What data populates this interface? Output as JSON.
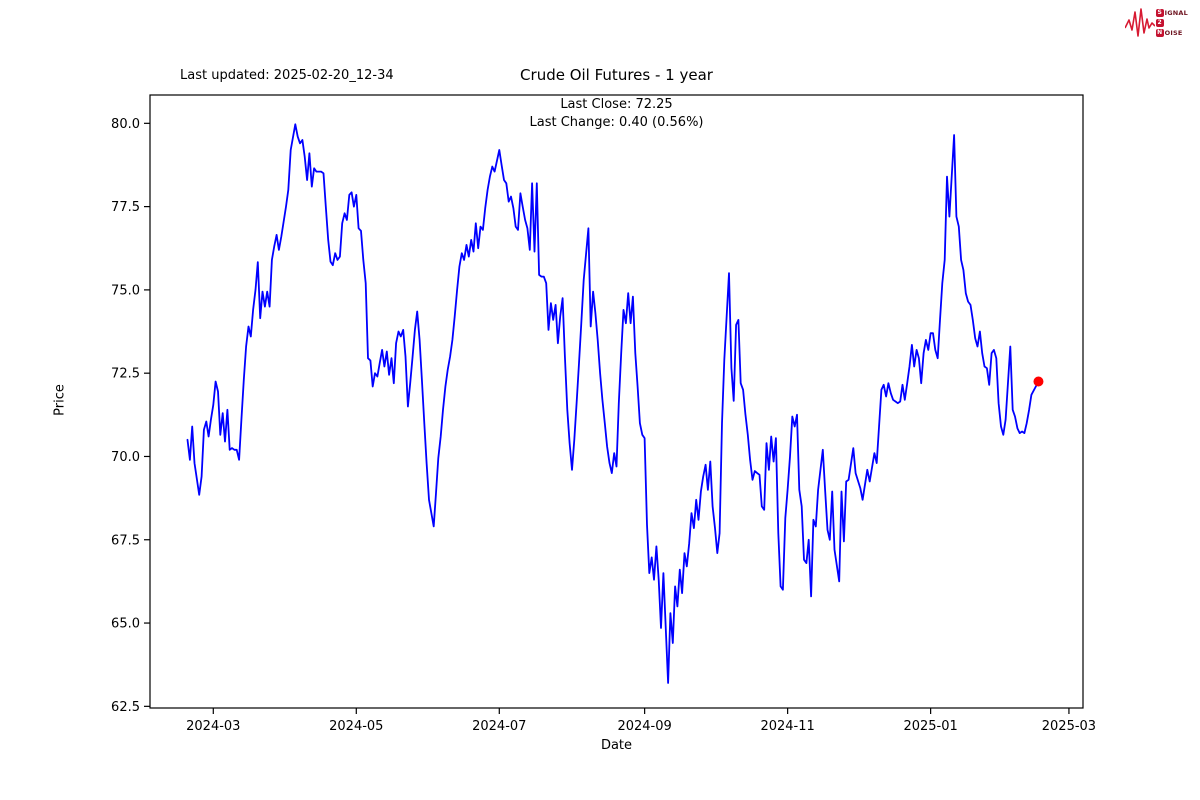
{
  "header": {
    "last_updated": "Last updated: 2025-02-20_12-34",
    "title": "Crude Oil Futures - 1 year",
    "last_close": "Last Close: 72.25",
    "last_change": "Last Change: 0.40 (0.56%)"
  },
  "logo": {
    "word1_initial": "S",
    "word1_rest": "IGNAL",
    "word2": "2",
    "word3_initial": "N",
    "word3_rest": "OISE",
    "accent_color": "#c41230"
  },
  "axes": {
    "xlabel": "Date",
    "ylabel": "Price"
  },
  "chart_data": {
    "type": "line",
    "title": "Crude Oil Futures - 1 year",
    "xlabel": "Date",
    "ylabel": "Price",
    "line_color": "#0000ff",
    "last_point_color": "#ff0000",
    "grid": false,
    "x_start_date": "2024-02-19",
    "x_end_date": "2025-02-19",
    "xlim_days": [
      -16,
      382
    ],
    "ylim": [
      62.45,
      80.85
    ],
    "x_ticks": [
      {
        "label": "2024-03",
        "day": 11
      },
      {
        "label": "2024-05",
        "day": 72
      },
      {
        "label": "2024-07",
        "day": 133
      },
      {
        "label": "2024-09",
        "day": 195
      },
      {
        "label": "2024-11",
        "day": 256
      },
      {
        "label": "2025-01",
        "day": 317
      },
      {
        "label": "2025-03",
        "day": 376
      }
    ],
    "y_ticks": [
      {
        "label": "80.0",
        "value": 80.0
      },
      {
        "label": "77.5",
        "value": 77.5
      },
      {
        "label": "75.0",
        "value": 75.0
      },
      {
        "label": "72.5",
        "value": 72.5
      },
      {
        "label": "70.0",
        "value": 70.0
      },
      {
        "label": "67.5",
        "value": 67.5
      },
      {
        "label": "65.0",
        "value": 65.0
      },
      {
        "label": "62.5",
        "value": 62.5
      }
    ],
    "last_close": 72.25,
    "last_change": 0.4,
    "last_change_pct": 0.56,
    "points_format": "[days_since_2024-02-19, price]",
    "points": [
      [
        0,
        70.5
      ],
      [
        1,
        69.9
      ],
      [
        2,
        70.9
      ],
      [
        3,
        69.8
      ],
      [
        5,
        68.85
      ],
      [
        6,
        69.4
      ],
      [
        7,
        70.8
      ],
      [
        8,
        71.05
      ],
      [
        9,
        70.6
      ],
      [
        10,
        71.1
      ],
      [
        11,
        71.55
      ],
      [
        12,
        72.25
      ],
      [
        13,
        71.95
      ],
      [
        14,
        70.65
      ],
      [
        15,
        71.3
      ],
      [
        16,
        70.45
      ],
      [
        17,
        71.4
      ],
      [
        18,
        70.2
      ],
      [
        19,
        70.25
      ],
      [
        20,
        70.2
      ],
      [
        21,
        70.2
      ],
      [
        22,
        69.9
      ],
      [
        23,
        71.1
      ],
      [
        24,
        72.3
      ],
      [
        25,
        73.3
      ],
      [
        26,
        73.9
      ],
      [
        27,
        73.6
      ],
      [
        28,
        74.4
      ],
      [
        29,
        75.0
      ],
      [
        30,
        75.83
      ],
      [
        31,
        74.15
      ],
      [
        32,
        74.95
      ],
      [
        33,
        74.5
      ],
      [
        34,
        74.95
      ],
      [
        35,
        74.5
      ],
      [
        36,
        75.9
      ],
      [
        37,
        76.3
      ],
      [
        38,
        76.65
      ],
      [
        39,
        76.2
      ],
      [
        40,
        76.6
      ],
      [
        42,
        77.5
      ],
      [
        43,
        78.0
      ],
      [
        44,
        79.2
      ],
      [
        46,
        79.97
      ],
      [
        47,
        79.6
      ],
      [
        48,
        79.4
      ],
      [
        49,
        79.5
      ],
      [
        50,
        79.0
      ],
      [
        51,
        78.3
      ],
      [
        52,
        79.1
      ],
      [
        53,
        78.1
      ],
      [
        54,
        78.65
      ],
      [
        55,
        78.55
      ],
      [
        57,
        78.55
      ],
      [
        58,
        78.5
      ],
      [
        59,
        77.5
      ],
      [
        60,
        76.5
      ],
      [
        61,
        75.85
      ],
      [
        62,
        75.74
      ],
      [
        63,
        76.1
      ],
      [
        64,
        75.9
      ],
      [
        65,
        76.0
      ],
      [
        66,
        77.0
      ],
      [
        67,
        77.3
      ],
      [
        68,
        77.1
      ],
      [
        69,
        77.85
      ],
      [
        70,
        77.93
      ],
      [
        71,
        77.5
      ],
      [
        72,
        77.85
      ],
      [
        73,
        76.85
      ],
      [
        74,
        76.77
      ],
      [
        75,
        75.9
      ],
      [
        76,
        75.2
      ],
      [
        77,
        72.95
      ],
      [
        78,
        72.88
      ],
      [
        79,
        72.1
      ],
      [
        80,
        72.5
      ],
      [
        81,
        72.4
      ],
      [
        82,
        72.8
      ],
      [
        83,
        73.2
      ],
      [
        84,
        72.7
      ],
      [
        85,
        73.15
      ],
      [
        86,
        72.45
      ],
      [
        87,
        72.95
      ],
      [
        88,
        72.2
      ],
      [
        89,
        73.4
      ],
      [
        90,
        73.75
      ],
      [
        91,
        73.6
      ],
      [
        92,
        73.8
      ],
      [
        93,
        73.0
      ],
      [
        94,
        71.5
      ],
      [
        95,
        72.2
      ],
      [
        96,
        73.0
      ],
      [
        97,
        73.8
      ],
      [
        98,
        74.35
      ],
      [
        99,
        73.5
      ],
      [
        100,
        72.3
      ],
      [
        101,
        71.0
      ],
      [
        102,
        69.8
      ],
      [
        103,
        68.7
      ],
      [
        105,
        67.9
      ],
      [
        106,
        68.9
      ],
      [
        107,
        69.95
      ],
      [
        108,
        70.6
      ],
      [
        109,
        71.4
      ],
      [
        110,
        72.1
      ],
      [
        111,
        72.6
      ],
      [
        112,
        73.0
      ],
      [
        113,
        73.5
      ],
      [
        114,
        74.2
      ],
      [
        115,
        75.0
      ],
      [
        116,
        75.7
      ],
      [
        117,
        76.1
      ],
      [
        118,
        75.9
      ],
      [
        119,
        76.35
      ],
      [
        120,
        76.0
      ],
      [
        121,
        76.5
      ],
      [
        122,
        76.15
      ],
      [
        123,
        77.0
      ],
      [
        124,
        76.25
      ],
      [
        125,
        76.9
      ],
      [
        126,
        76.8
      ],
      [
        127,
        77.45
      ],
      [
        128,
        78.0
      ],
      [
        129,
        78.4
      ],
      [
        130,
        78.7
      ],
      [
        131,
        78.55
      ],
      [
        133,
        79.2
      ],
      [
        134,
        78.75
      ],
      [
        135,
        78.3
      ],
      [
        136,
        78.2
      ],
      [
        137,
        77.65
      ],
      [
        138,
        77.8
      ],
      [
        139,
        77.45
      ],
      [
        140,
        76.9
      ],
      [
        141,
        76.8
      ],
      [
        142,
        77.9
      ],
      [
        143,
        77.5
      ],
      [
        144,
        77.1
      ],
      [
        145,
        76.85
      ],
      [
        146,
        76.2
      ],
      [
        147,
        78.2
      ],
      [
        148,
        76.15
      ],
      [
        149,
        78.2
      ],
      [
        150,
        75.45
      ],
      [
        151,
        75.4
      ],
      [
        152,
        75.4
      ],
      [
        153,
        75.2
      ],
      [
        154,
        73.8
      ],
      [
        155,
        74.6
      ],
      [
        156,
        74.1
      ],
      [
        157,
        74.55
      ],
      [
        158,
        73.4
      ],
      [
        159,
        74.2
      ],
      [
        160,
        74.75
      ],
      [
        161,
        73.0
      ],
      [
        162,
        71.4
      ],
      [
        163,
        70.4
      ],
      [
        164,
        69.6
      ],
      [
        165,
        70.5
      ],
      [
        166,
        71.6
      ],
      [
        167,
        72.8
      ],
      [
        168,
        74.0
      ],
      [
        169,
        75.3
      ],
      [
        171,
        76.85
      ],
      [
        172,
        73.9
      ],
      [
        173,
        74.95
      ],
      [
        174,
        74.3
      ],
      [
        175,
        73.5
      ],
      [
        176,
        72.5
      ],
      [
        177,
        71.7
      ],
      [
        178,
        71.0
      ],
      [
        179,
        70.3
      ],
      [
        180,
        69.8
      ],
      [
        181,
        69.5
      ],
      [
        182,
        70.1
      ],
      [
        183,
        69.7
      ],
      [
        184,
        71.6
      ],
      [
        185,
        73.1
      ],
      [
        186,
        74.4
      ],
      [
        187,
        74.0
      ],
      [
        188,
        74.9
      ],
      [
        189,
        74.0
      ],
      [
        190,
        74.8
      ],
      [
        191,
        73.1
      ],
      [
        192,
        72.1
      ],
      [
        193,
        71.0
      ],
      [
        194,
        70.65
      ],
      [
        195,
        70.55
      ],
      [
        196,
        67.95
      ],
      [
        197,
        66.5
      ],
      [
        198,
        66.97
      ],
      [
        199,
        66.3
      ],
      [
        200,
        67.3
      ],
      [
        201,
        66.3
      ],
      [
        202,
        64.85
      ],
      [
        203,
        66.5
      ],
      [
        205,
        63.2
      ],
      [
        206,
        65.3
      ],
      [
        207,
        64.4
      ],
      [
        208,
        66.1
      ],
      [
        209,
        65.5
      ],
      [
        210,
        66.6
      ],
      [
        211,
        65.9
      ],
      [
        212,
        67.1
      ],
      [
        213,
        66.7
      ],
      [
        214,
        67.4
      ],
      [
        215,
        68.3
      ],
      [
        216,
        67.85
      ],
      [
        217,
        68.7
      ],
      [
        218,
        68.1
      ],
      [
        219,
        68.95
      ],
      [
        220,
        69.4
      ],
      [
        221,
        69.75
      ],
      [
        222,
        69.0
      ],
      [
        223,
        69.85
      ],
      [
        224,
        68.5
      ],
      [
        225,
        67.85
      ],
      [
        226,
        67.1
      ],
      [
        227,
        67.7
      ],
      [
        228,
        71.0
      ],
      [
        229,
        72.9
      ],
      [
        231,
        75.5
      ],
      [
        232,
        72.66
      ],
      [
        233,
        71.67
      ],
      [
        234,
        73.95
      ],
      [
        235,
        74.1
      ],
      [
        236,
        72.2
      ],
      [
        237,
        72.0
      ],
      [
        238,
        71.27
      ],
      [
        239,
        70.65
      ],
      [
        240,
        69.9
      ],
      [
        241,
        69.3
      ],
      [
        242,
        69.56
      ],
      [
        243,
        69.5
      ],
      [
        244,
        69.45
      ],
      [
        245,
        68.5
      ],
      [
        246,
        68.4
      ],
      [
        247,
        70.4
      ],
      [
        248,
        69.6
      ],
      [
        249,
        70.6
      ],
      [
        250,
        69.85
      ],
      [
        251,
        70.55
      ],
      [
        252,
        67.7
      ],
      [
        253,
        66.1
      ],
      [
        254,
        66.0
      ],
      [
        255,
        68.15
      ],
      [
        256,
        69.0
      ],
      [
        257,
        70.0
      ],
      [
        258,
        71.2
      ],
      [
        259,
        70.9
      ],
      [
        260,
        71.25
      ],
      [
        261,
        69.0
      ],
      [
        262,
        68.5
      ],
      [
        263,
        66.9
      ],
      [
        264,
        66.8
      ],
      [
        265,
        67.5
      ],
      [
        266,
        65.8
      ],
      [
        267,
        68.1
      ],
      [
        268,
        67.9
      ],
      [
        269,
        69.0
      ],
      [
        271,
        70.2
      ],
      [
        272,
        69.0
      ],
      [
        273,
        67.8
      ],
      [
        274,
        67.5
      ],
      [
        275,
        68.95
      ],
      [
        276,
        67.2
      ],
      [
        278,
        66.25
      ],
      [
        279,
        68.95
      ],
      [
        280,
        67.45
      ],
      [
        281,
        69.25
      ],
      [
        282,
        69.3
      ],
      [
        284,
        70.25
      ],
      [
        285,
        69.5
      ],
      [
        287,
        69.05
      ],
      [
        288,
        68.7
      ],
      [
        290,
        69.6
      ],
      [
        291,
        69.25
      ],
      [
        293,
        70.1
      ],
      [
        294,
        69.8
      ],
      [
        296,
        72.0
      ],
      [
        297,
        72.15
      ],
      [
        298,
        71.8
      ],
      [
        299,
        72.2
      ],
      [
        300,
        71.9
      ],
      [
        301,
        71.7
      ],
      [
        302,
        71.65
      ],
      [
        303,
        71.6
      ],
      [
        304,
        71.65
      ],
      [
        305,
        72.15
      ],
      [
        306,
        71.7
      ],
      [
        307,
        72.2
      ],
      [
        308,
        72.7
      ],
      [
        309,
        73.35
      ],
      [
        310,
        72.7
      ],
      [
        311,
        73.2
      ],
      [
        312,
        72.95
      ],
      [
        313,
        72.2
      ],
      [
        314,
        73.1
      ],
      [
        315,
        73.5
      ],
      [
        316,
        73.2
      ],
      [
        317,
        73.7
      ],
      [
        318,
        73.7
      ],
      [
        319,
        73.2
      ],
      [
        320,
        72.95
      ],
      [
        321,
        74.1
      ],
      [
        322,
        75.2
      ],
      [
        323,
        75.9
      ],
      [
        324,
        78.4
      ],
      [
        325,
        77.2
      ],
      [
        327,
        79.65
      ],
      [
        328,
        77.2
      ],
      [
        329,
        76.9
      ],
      [
        330,
        75.9
      ],
      [
        331,
        75.6
      ],
      [
        332,
        74.9
      ],
      [
        333,
        74.65
      ],
      [
        334,
        74.55
      ],
      [
        335,
        74.1
      ],
      [
        336,
        73.55
      ],
      [
        337,
        73.3
      ],
      [
        338,
        73.75
      ],
      [
        339,
        73.1
      ],
      [
        340,
        72.7
      ],
      [
        341,
        72.65
      ],
      [
        342,
        72.15
      ],
      [
        343,
        73.1
      ],
      [
        344,
        73.2
      ],
      [
        345,
        72.95
      ],
      [
        346,
        71.6
      ],
      [
        347,
        70.9
      ],
      [
        348,
        70.65
      ],
      [
        349,
        71.1
      ],
      [
        351,
        73.3
      ],
      [
        352,
        71.4
      ],
      [
        353,
        71.2
      ],
      [
        354,
        70.85
      ],
      [
        355,
        70.7
      ],
      [
        356,
        70.75
      ],
      [
        357,
        70.7
      ],
      [
        358,
        71.0
      ],
      [
        359,
        71.4
      ],
      [
        360,
        71.85
      ],
      [
        363,
        72.25
      ]
    ]
  }
}
